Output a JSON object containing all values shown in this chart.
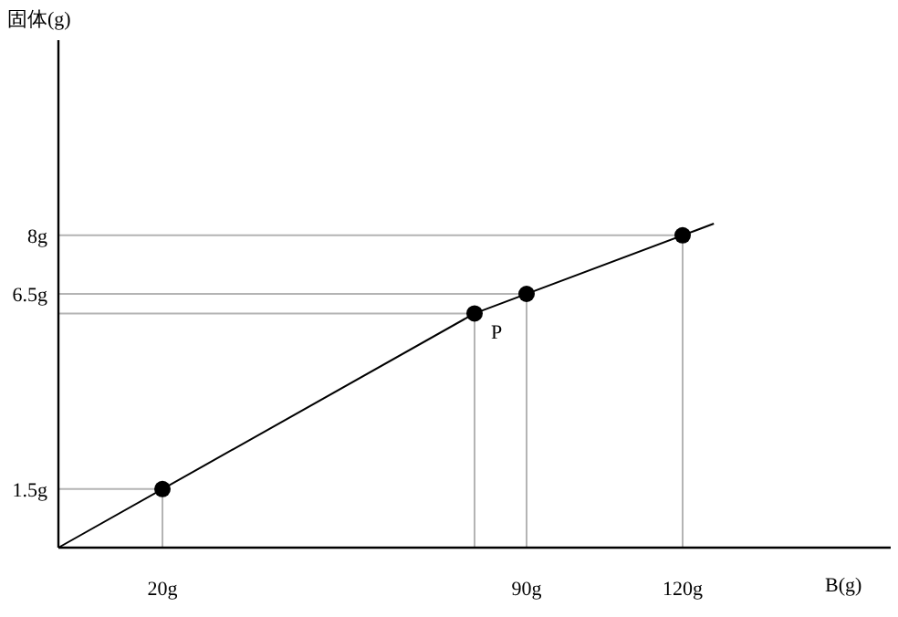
{
  "chart_data": {
    "type": "line",
    "ylabel": "固体(g)",
    "xlabel": "B(g)",
    "xlim": [
      0,
      160
    ],
    "ylim": [
      0,
      13
    ],
    "xticks": [
      {
        "value": 20,
        "label": "20g"
      },
      {
        "value": 90,
        "label": "90g"
      },
      {
        "value": 120,
        "label": "120g"
      }
    ],
    "yticks": [
      {
        "value": 1.5,
        "label": "1.5g"
      },
      {
        "value": 6.5,
        "label": "6.5g"
      },
      {
        "value": 8,
        "label": "8g"
      }
    ],
    "grid": false,
    "annotations": [
      {
        "text": "P",
        "x": 80,
        "y": 6
      }
    ],
    "series": [
      {
        "color": "#b4b4b4",
        "marker": "none",
        "x": [
          0,
          20,
          20,
          null,
          0,
          80,
          80,
          null,
          0,
          90,
          90,
          null,
          0,
          120,
          120
        ],
        "values": [
          1.5,
          1.5,
          0,
          null,
          6,
          6,
          0,
          null,
          6.5,
          6.5,
          0,
          null,
          8,
          8,
          0
        ]
      },
      {
        "color": "#000000",
        "marker": "none",
        "x": [
          0,
          80,
          126
        ],
        "values": [
          0,
          6,
          8.3
        ]
      },
      {
        "type": "scatter",
        "color": "#000000",
        "marker": "circle",
        "x": [
          20,
          80,
          90,
          120
        ],
        "values": [
          1.5,
          6,
          6.5,
          8
        ]
      }
    ]
  }
}
